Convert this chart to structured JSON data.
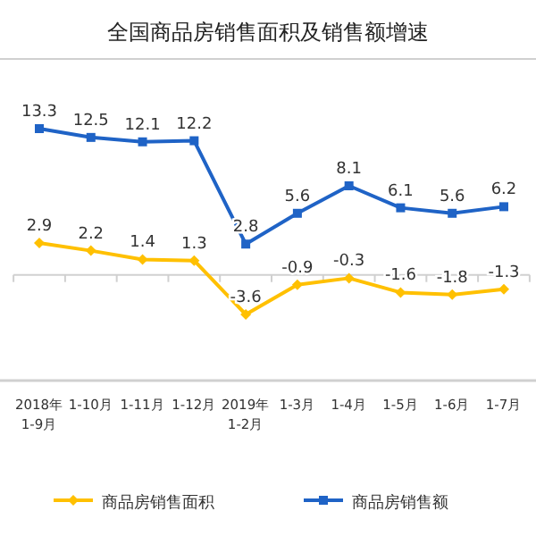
{
  "chart_data": {
    "type": "line",
    "title": "全国商品房销售面积及销售额增速",
    "categories": [
      "2018年 1-9月",
      "1-10月",
      "1-11月",
      "1-12月",
      "2019年 1-2月",
      "1-3月",
      "1-4月",
      "1-5月",
      "1-6月",
      "1-7月"
    ],
    "series": [
      {
        "name": "商品房销售面积",
        "color": "#ffc000",
        "marker": "diamond",
        "values": [
          2.9,
          2.2,
          1.4,
          1.3,
          -3.6,
          -0.9,
          -0.3,
          -1.6,
          -1.8,
          -1.3
        ]
      },
      {
        "name": "商品房销售额",
        "color": "#1f63c6",
        "marker": "square",
        "values": [
          13.3,
          12.5,
          12.1,
          12.2,
          2.8,
          5.6,
          8.1,
          6.1,
          5.6,
          6.2
        ]
      }
    ],
    "data_labels": true,
    "legend": "bottom",
    "line_style": "solid"
  }
}
